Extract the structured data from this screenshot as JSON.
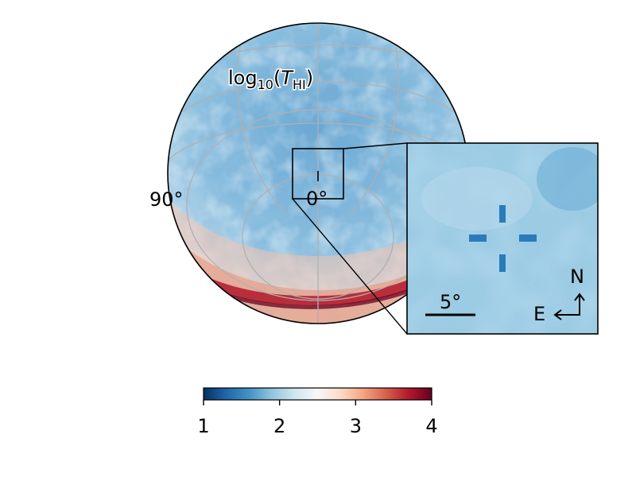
{
  "chart_data": {
    "type": "heatmap",
    "projection": "orthographic all-sky",
    "title": "log10(T_HI)",
    "title_parts": {
      "base": "log",
      "sub": "10",
      "open": "(",
      "var": "T",
      "var_sub": "HI",
      "close": ")"
    },
    "graticule_labels": [
      "90°",
      "0°"
    ],
    "colorbar": {
      "colormap": "RdBu_r",
      "vmin": 1,
      "vmax": 4,
      "ticks": [
        1,
        2,
        3,
        4
      ],
      "tick_labels": [
        "1",
        "2",
        "3",
        "4"
      ],
      "colors": [
        "#053061",
        "#2166ac",
        "#4393c3",
        "#92c5de",
        "#d1e5f0",
        "#f7f7f7",
        "#fddbc7",
        "#f4a582",
        "#d6604d",
        "#b2182b",
        "#67001f"
      ]
    },
    "inset": {
      "description": "zoom of boxed region around target",
      "scale_bar_label": "5°",
      "compass": {
        "north": "N",
        "east": "E"
      },
      "marker_color": "#2b7bba"
    }
  }
}
